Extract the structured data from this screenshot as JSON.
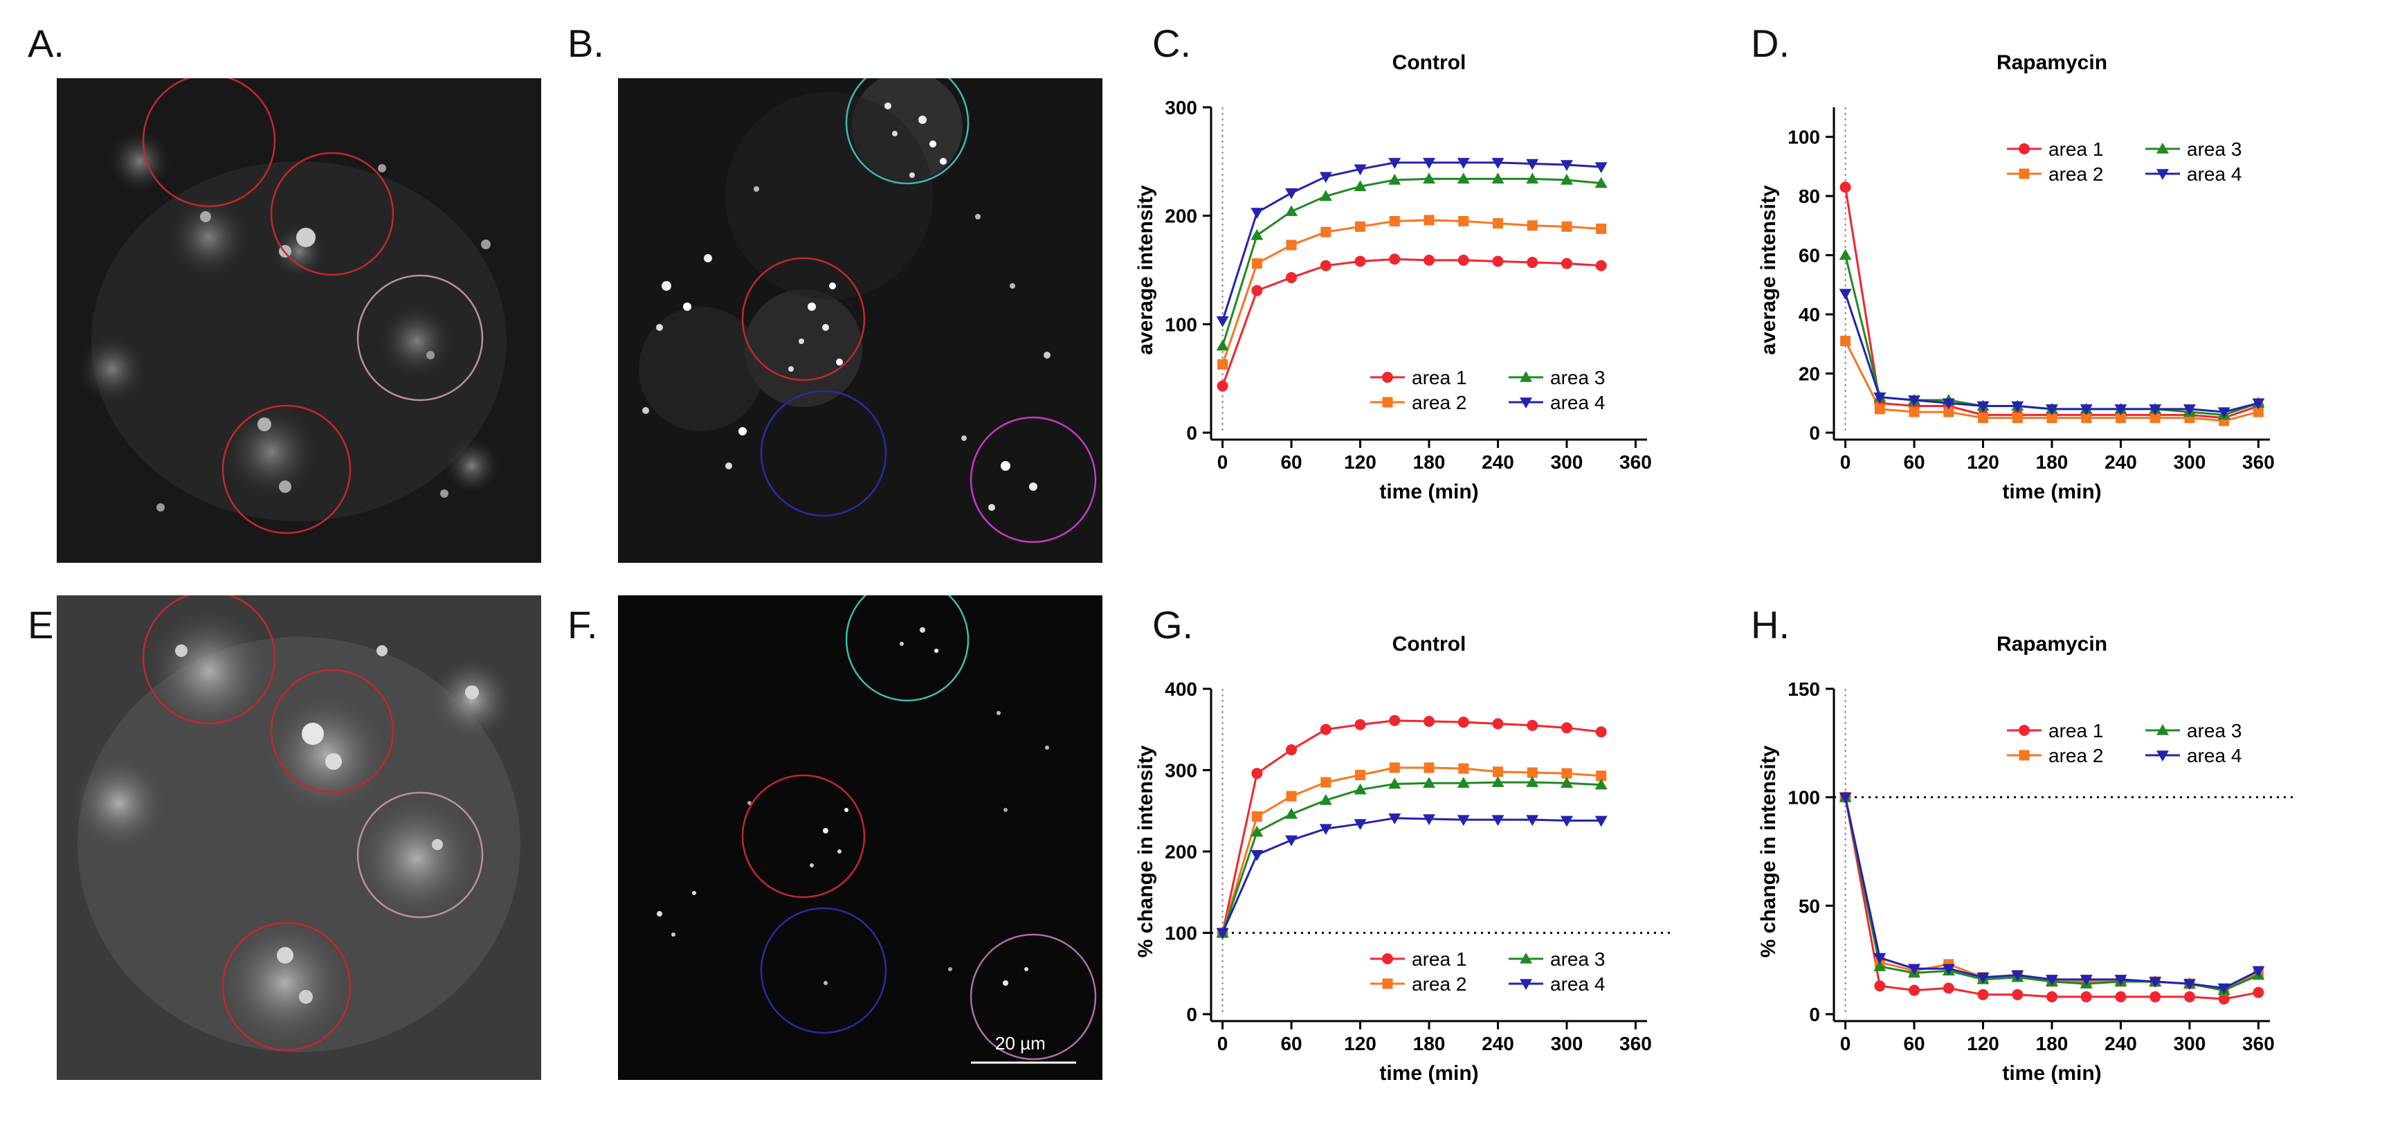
{
  "panels": {
    "A": "A.",
    "B": "B.",
    "C": "C.",
    "D": "D.",
    "E": "E.",
    "F": "F.",
    "G": "G.",
    "H": "H."
  },
  "scale_bar_label": "20 µm",
  "colors": {
    "area1": "#f0262e",
    "area2": "#f7761f",
    "area3": "#1f8a23",
    "area4": "#2323b0",
    "roi_red": "#c2282b",
    "roi_pink": "#b98fa6",
    "roi_cyan": "#3fb8b3",
    "roi_blue": "#2a2aa0",
    "roi_magenta": "#c23ac8",
    "roi_light_magenta": "#b06aa6"
  },
  "chart_data": [
    {
      "id": "C",
      "type": "line",
      "title": "Control",
      "xlabel": "time (min)",
      "ylabel": "average intensity",
      "xlim": [
        -10,
        370
      ],
      "ylim": [
        0,
        300
      ],
      "xticks": [
        0,
        60,
        120,
        180,
        240,
        300,
        360
      ],
      "yticks": [
        0,
        100,
        200,
        300
      ],
      "legend_position": "bottom-right",
      "ref_vline": 0,
      "x": [
        0,
        30,
        60,
        90,
        120,
        150,
        180,
        210,
        240,
        270,
        300,
        330
      ],
      "series": [
        {
          "name": "area 1",
          "marker": "circle",
          "values": [
            43,
            131,
            143,
            154,
            158,
            160,
            159,
            159,
            158,
            157,
            156,
            154
          ]
        },
        {
          "name": "area 2",
          "marker": "square",
          "values": [
            63,
            156,
            173,
            185,
            190,
            195,
            196,
            195,
            193,
            191,
            190,
            188
          ]
        },
        {
          "name": "area 3",
          "marker": "triangle-up",
          "values": [
            80,
            182,
            204,
            218,
            227,
            233,
            234,
            234,
            234,
            234,
            233,
            230
          ]
        },
        {
          "name": "area 4",
          "marker": "triangle-down",
          "values": [
            103,
            203,
            221,
            236,
            243,
            249,
            249,
            249,
            249,
            248,
            247,
            245
          ]
        }
      ]
    },
    {
      "id": "D",
      "type": "line",
      "title": "Rapamycin",
      "xlabel": "time (min)",
      "ylabel": "average intensity",
      "xlim": [
        -10,
        370
      ],
      "ylim": [
        0,
        110
      ],
      "xticks": [
        0,
        60,
        120,
        180,
        240,
        300,
        360
      ],
      "yticks": [
        0,
        20,
        40,
        60,
        80,
        100
      ],
      "legend_position": "top-right",
      "ref_vline": 0,
      "x": [
        0,
        30,
        60,
        90,
        120,
        150,
        180,
        210,
        240,
        270,
        300,
        330,
        360
      ],
      "series": [
        {
          "name": "area 1",
          "marker": "circle",
          "values": [
            83,
            10,
            9,
            9,
            6,
            6,
            6,
            6,
            6,
            6,
            6,
            5,
            9
          ]
        },
        {
          "name": "area 2",
          "marker": "square",
          "values": [
            31,
            8,
            7,
            7,
            5,
            5,
            5,
            5,
            5,
            5,
            5,
            4,
            7
          ]
        },
        {
          "name": "area 3",
          "marker": "triangle-up",
          "values": [
            60,
            12,
            11,
            11,
            9,
            9,
            8,
            8,
            8,
            8,
            7,
            6,
            10
          ]
        },
        {
          "name": "area 4",
          "marker": "triangle-down",
          "values": [
            47,
            12,
            11,
            10,
            9,
            9,
            8,
            8,
            8,
            8,
            8,
            7,
            10
          ]
        }
      ]
    },
    {
      "id": "G",
      "type": "line",
      "title": "Control",
      "xlabel": "time (min)",
      "ylabel": "% change in intensity",
      "xlim": [
        -10,
        370
      ],
      "ylim": [
        0,
        400
      ],
      "xticks": [
        0,
        60,
        120,
        180,
        240,
        300,
        360
      ],
      "yticks": [
        0,
        100,
        200,
        300,
        400
      ],
      "legend_position": "bottom-right",
      "ref_vline": 0,
      "ref_hline": 100,
      "x": [
        0,
        30,
        60,
        90,
        120,
        150,
        180,
        210,
        240,
        270,
        300,
        330
      ],
      "series": [
        {
          "name": "area 1",
          "marker": "circle",
          "values": [
            100,
            296,
            325,
            350,
            356,
            361,
            360,
            359,
            357,
            355,
            352,
            347
          ]
        },
        {
          "name": "area 2",
          "marker": "square",
          "values": [
            100,
            243,
            268,
            285,
            294,
            303,
            303,
            302,
            298,
            297,
            296,
            293
          ]
        },
        {
          "name": "area 3",
          "marker": "triangle-up",
          "values": [
            100,
            224,
            246,
            263,
            276,
            283,
            284,
            284,
            285,
            285,
            284,
            282
          ]
        },
        {
          "name": "area 4",
          "marker": "triangle-down",
          "values": [
            100,
            196,
            214,
            228,
            234,
            241,
            240,
            239,
            239,
            239,
            238,
            238
          ]
        }
      ]
    },
    {
      "id": "H",
      "type": "line",
      "title": "Rapamycin",
      "xlabel": "time (min)",
      "ylabel": "% change in intensity",
      "xlim": [
        -10,
        370
      ],
      "ylim": [
        0,
        150
      ],
      "xticks": [
        0,
        60,
        120,
        180,
        240,
        300,
        360
      ],
      "yticks": [
        0,
        50,
        100,
        150
      ],
      "legend_position": "top-right",
      "ref_vline": 0,
      "ref_hline": 100,
      "x": [
        0,
        30,
        60,
        90,
        120,
        150,
        180,
        210,
        240,
        270,
        300,
        330,
        360
      ],
      "series": [
        {
          "name": "area 1",
          "marker": "circle",
          "values": [
            100,
            13,
            11,
            12,
            9,
            9,
            8,
            8,
            8,
            8,
            8,
            7,
            10
          ]
        },
        {
          "name": "area 2",
          "marker": "square",
          "values": [
            100,
            24,
            20,
            23,
            17,
            18,
            15,
            15,
            15,
            15,
            14,
            11,
            19
          ]
        },
        {
          "name": "area 3",
          "marker": "triangle-up",
          "values": [
            100,
            22,
            19,
            20,
            16,
            17,
            15,
            14,
            15,
            15,
            14,
            11,
            18
          ]
        },
        {
          "name": "area 4",
          "marker": "triangle-down",
          "values": [
            100,
            26,
            21,
            21,
            17,
            18,
            16,
            16,
            16,
            15,
            14,
            12,
            20
          ]
        }
      ]
    }
  ]
}
